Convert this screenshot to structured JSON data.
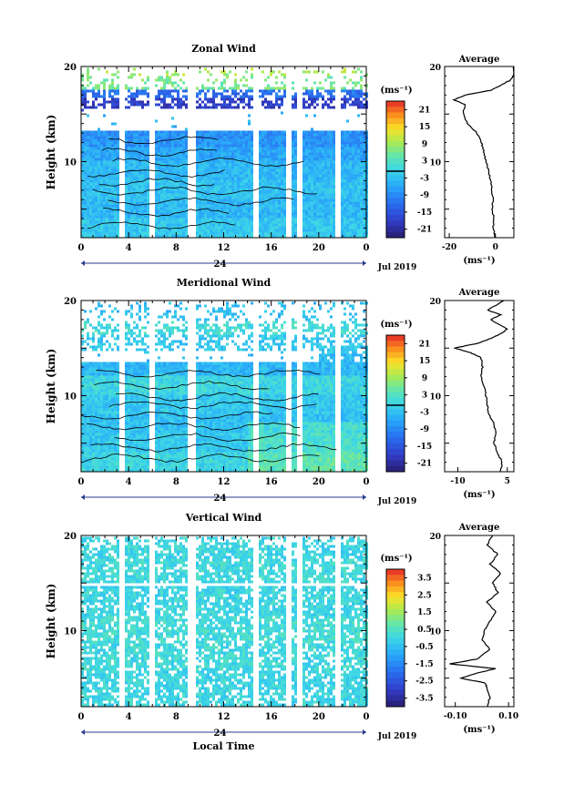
{
  "month_label": "Jul 2019",
  "date_label": "24",
  "colorbar_unit": "(ms⁻¹)",
  "average_title": "Average",
  "chart_data": [
    {
      "type": "heatmap",
      "title": "Zonal Wind",
      "ylabel": "Height (km)",
      "xlabel": "",
      "x_ticks": [
        "0",
        "4",
        "8",
        "12",
        "16",
        "20",
        "0"
      ],
      "y_ticks": [
        "20",
        "10"
      ],
      "ylim": [
        2,
        20
      ],
      "xlim": [
        0,
        24
      ],
      "colorbar": {
        "ticks": [
          "21",
          "15",
          "9",
          "3",
          "-3",
          "-9",
          "-15",
          "-21"
        ],
        "range": [
          -24,
          24
        ]
      },
      "field": [
        {
          "h": 19.5,
          "v": 9
        },
        {
          "h": 18.0,
          "v": 6
        },
        {
          "h": 17.0,
          "v": -12
        },
        {
          "h": 16.0,
          "v": -18
        },
        {
          "h": 14.5,
          "v": -5
        },
        {
          "h": 12.0,
          "v": -8
        },
        {
          "h": 11.0,
          "v": -6
        },
        {
          "h": 9.0,
          "v": -4
        },
        {
          "h": 7.0,
          "v": -3
        },
        {
          "h": 5.0,
          "v": -4
        },
        {
          "h": 3.0,
          "v": -2
        }
      ],
      "gaps_hours": [
        3.3,
        5.8,
        9.2,
        14.6,
        17.4,
        18.2,
        21.6
      ],
      "average": {
        "xlim": [
          -22,
          8
        ],
        "x_ticks": [
          "-20",
          "0"
        ],
        "heights": [
          2,
          3,
          4,
          5,
          6,
          7,
          8,
          9,
          10,
          11,
          12,
          13,
          14,
          15,
          16,
          16.5,
          17,
          17.5,
          18,
          18.5,
          19,
          20
        ],
        "values": [
          0,
          -1,
          -0.5,
          -1.5,
          -1,
          -1.5,
          -2,
          -3,
          -4,
          -5,
          -6,
          -8,
          -12,
          -14,
          -13,
          -18,
          -13,
          -2,
          2,
          6,
          8,
          8
        ]
      }
    },
    {
      "type": "heatmap",
      "title": "Meridional Wind",
      "ylabel": "Height (km)",
      "xlabel": "",
      "x_ticks": [
        "0",
        "4",
        "8",
        "12",
        "16",
        "20",
        "0"
      ],
      "y_ticks": [
        "20",
        "10"
      ],
      "ylim": [
        2,
        20
      ],
      "xlim": [
        0,
        24
      ],
      "colorbar": {
        "ticks": [
          "21",
          "15",
          "9",
          "3",
          "-3",
          "-9",
          "-15",
          "-21"
        ],
        "range": [
          -24,
          24
        ]
      },
      "field": [
        {
          "h": 18.5,
          "v": -3
        },
        {
          "h": 17.0,
          "v": 1
        },
        {
          "h": 15.5,
          "v": -2
        },
        {
          "h": 13.0,
          "v": -4
        },
        {
          "h": 11.0,
          "v": 0
        },
        {
          "h": 9.0,
          "v": -2
        },
        {
          "h": 7.0,
          "v": -3
        },
        {
          "h": 5.0,
          "v": -2
        },
        {
          "h": 3.0,
          "v": 0
        }
      ],
      "gaps_hours": [
        3.3,
        5.8,
        9.2,
        14.6,
        17.4,
        18.2,
        21.6
      ],
      "average": {
        "xlim": [
          -14,
          7
        ],
        "x_ticks": [
          "-10",
          "5"
        ],
        "heights": [
          2,
          3,
          4,
          5,
          6,
          7,
          8,
          9,
          10,
          11,
          12,
          13,
          14,
          14.5,
          15,
          15.5,
          16,
          16.5,
          17,
          18,
          18.5,
          19,
          20
        ],
        "values": [
          3,
          3.5,
          2,
          1,
          1.5,
          1,
          -0.5,
          -1,
          -1.5,
          -2,
          -3,
          -2.5,
          -3,
          -6,
          -11,
          -4,
          0,
          3,
          5,
          0,
          3,
          -1,
          4
        ]
      }
    },
    {
      "type": "heatmap",
      "title": "Vertical Wind",
      "ylabel": "Height (km)",
      "xlabel": "Local Time",
      "x_ticks": [
        "0",
        "4",
        "8",
        "12",
        "16",
        "20",
        "0"
      ],
      "y_ticks": [
        "20",
        "10"
      ],
      "ylim": [
        2,
        20
      ],
      "xlim": [
        0,
        24
      ],
      "colorbar": {
        "ticks": [
          "3.5",
          "2.5",
          "1.5",
          "0.5",
          "-0.5",
          "-1.5",
          "-2.5",
          "-3.5"
        ],
        "range": [
          -4,
          4
        ]
      },
      "field": [
        {
          "h": 19.0,
          "v": 0
        },
        {
          "h": 16.0,
          "v": 0.1
        },
        {
          "h": 13.0,
          "v": 0
        },
        {
          "h": 10.0,
          "v": 0.2
        },
        {
          "h": 7.0,
          "v": 0.1
        },
        {
          "h": 4.0,
          "v": 0
        }
      ],
      "gaps_hours": [
        3.3,
        5.8,
        9.2,
        14.6,
        17.4,
        18.2,
        21.6
      ],
      "average": {
        "xlim": [
          -0.14,
          0.12
        ],
        "x_ticks": [
          "-0.10",
          "0.10"
        ],
        "heights": [
          2,
          3,
          4,
          4.5,
          5,
          5.5,
          6,
          6.5,
          7,
          8,
          9,
          10,
          11,
          12,
          13,
          14,
          15,
          16,
          17,
          18,
          19,
          20
        ],
        "values": [
          0.02,
          0.03,
          0.02,
          0.01,
          -0.08,
          -0.02,
          0.05,
          -0.12,
          -0.02,
          0.03,
          0.0,
          0.01,
          0.03,
          0.05,
          0.02,
          0.06,
          0.04,
          0.07,
          0.03,
          0.06,
          0.02,
          0.04
        ]
      }
    }
  ]
}
